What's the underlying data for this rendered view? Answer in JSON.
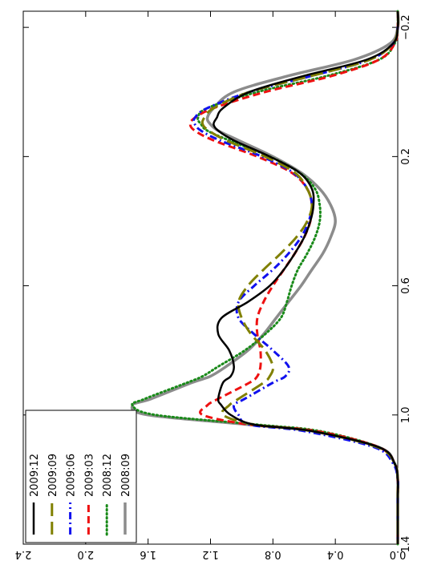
{
  "chart_data": {
    "type": "line",
    "orientation": "rotated-90-cw",
    "title": "",
    "xlabel": "",
    "ylabel": "",
    "xlim": [
      -0.25,
      1.4
    ],
    "ylim": [
      0.0,
      2.4
    ],
    "x_ticks": [
      -0.2,
      0.2,
      0.6,
      1.0,
      1.4
    ],
    "x_tick_labels": [
      "−0.2",
      "0.2",
      "0.6",
      "1.0",
      "1.4"
    ],
    "y_ticks": [
      0.0,
      0.4,
      0.8,
      1.2,
      1.6,
      2.0,
      2.4
    ],
    "y_tick_labels": [
      "0.0",
      "0.4",
      "0.8",
      "1.2",
      "1.6",
      "2.0",
      "2.4"
    ],
    "grid": false,
    "legend_position": "bottom-left",
    "x": [
      -0.25,
      -0.2,
      -0.15,
      -0.1,
      -0.05,
      0.0,
      0.05,
      0.08,
      0.1,
      0.12,
      0.15,
      0.2,
      0.25,
      0.3,
      0.35,
      0.4,
      0.45,
      0.5,
      0.55,
      0.6,
      0.65,
      0.7,
      0.75,
      0.8,
      0.85,
      0.88,
      0.9,
      0.95,
      0.97,
      1.0,
      1.03,
      1.05,
      1.1,
      1.15,
      1.2,
      1.25,
      1.3,
      1.35,
      1.4
    ],
    "series": [
      {
        "name": "2008:09",
        "color": "#8c8c8c",
        "style": "solid-thick",
        "values": [
          0.0,
          0.0,
          0.05,
          0.28,
          0.7,
          1.05,
          1.18,
          1.22,
          1.2,
          1.15,
          1.02,
          0.8,
          0.62,
          0.5,
          0.43,
          0.4,
          0.43,
          0.48,
          0.55,
          0.62,
          0.7,
          0.78,
          0.86,
          0.96,
          1.1,
          1.2,
          1.32,
          1.58,
          1.7,
          1.6,
          0.95,
          0.55,
          0.12,
          0.02,
          0.0,
          0.0,
          0.0,
          0.0,
          0.0
        ]
      },
      {
        "name": "2008:12",
        "color": "#1a8a1a",
        "style": "dotted",
        "values": [
          0.0,
          0.0,
          0.02,
          0.12,
          0.45,
          0.9,
          1.22,
          1.28,
          1.26,
          1.22,
          1.08,
          0.82,
          0.63,
          0.53,
          0.5,
          0.5,
          0.53,
          0.58,
          0.64,
          0.68,
          0.71,
          0.75,
          0.85,
          0.98,
          1.15,
          1.25,
          1.35,
          1.62,
          1.7,
          1.55,
          0.9,
          0.5,
          0.12,
          0.02,
          0.0,
          0.0,
          0.0,
          0.0,
          0.0
        ]
      },
      {
        "name": "2009:03",
        "color": "#ee1111",
        "style": "dashed",
        "values": [
          0.0,
          0.0,
          0.02,
          0.12,
          0.42,
          0.85,
          1.18,
          1.3,
          1.33,
          1.3,
          1.18,
          0.9,
          0.68,
          0.58,
          0.55,
          0.56,
          0.6,
          0.66,
          0.73,
          0.8,
          0.86,
          0.9,
          0.9,
          0.88,
          0.88,
          0.9,
          0.95,
          1.15,
          1.22,
          1.25,
          0.95,
          0.52,
          0.12,
          0.02,
          0.0,
          0.0,
          0.0,
          0.0,
          0.0
        ]
      },
      {
        "name": "2009:06",
        "color": "#1111ee",
        "style": "dash-dot",
        "values": [
          0.0,
          0.0,
          0.03,
          0.18,
          0.55,
          0.95,
          1.22,
          1.3,
          1.3,
          1.26,
          1.14,
          0.87,
          0.67,
          0.58,
          0.55,
          0.57,
          0.62,
          0.7,
          0.8,
          0.92,
          1.02,
          1.02,
          0.92,
          0.8,
          0.7,
          0.72,
          0.8,
          0.98,
          1.05,
          1.02,
          0.95,
          0.6,
          0.15,
          0.03,
          0.0,
          0.0,
          0.0,
          0.0,
          0.0
        ]
      },
      {
        "name": "2009:09",
        "color": "#808000",
        "style": "long-dash",
        "values": [
          0.0,
          0.0,
          0.03,
          0.18,
          0.55,
          0.95,
          1.18,
          1.24,
          1.25,
          1.21,
          1.1,
          0.85,
          0.66,
          0.58,
          0.55,
          0.58,
          0.65,
          0.75,
          0.86,
          0.96,
          1.02,
          1.0,
          0.94,
          0.85,
          0.8,
          0.82,
          0.86,
          1.02,
          1.08,
          1.12,
          0.92,
          0.55,
          0.13,
          0.02,
          0.0,
          0.0,
          0.0,
          0.0,
          0.0
        ]
      },
      {
        "name": "2009:12",
        "color": "#000000",
        "style": "solid",
        "values": [
          0.0,
          0.0,
          0.03,
          0.2,
          0.6,
          0.95,
          1.12,
          1.16,
          1.18,
          1.15,
          1.05,
          0.82,
          0.63,
          0.55,
          0.54,
          0.56,
          0.6,
          0.66,
          0.73,
          0.82,
          0.96,
          1.13,
          1.15,
          1.08,
          1.05,
          1.07,
          1.12,
          1.15,
          1.13,
          1.07,
          0.92,
          0.55,
          0.12,
          0.02,
          0.0,
          0.0,
          0.0,
          0.0,
          0.0
        ]
      }
    ]
  }
}
